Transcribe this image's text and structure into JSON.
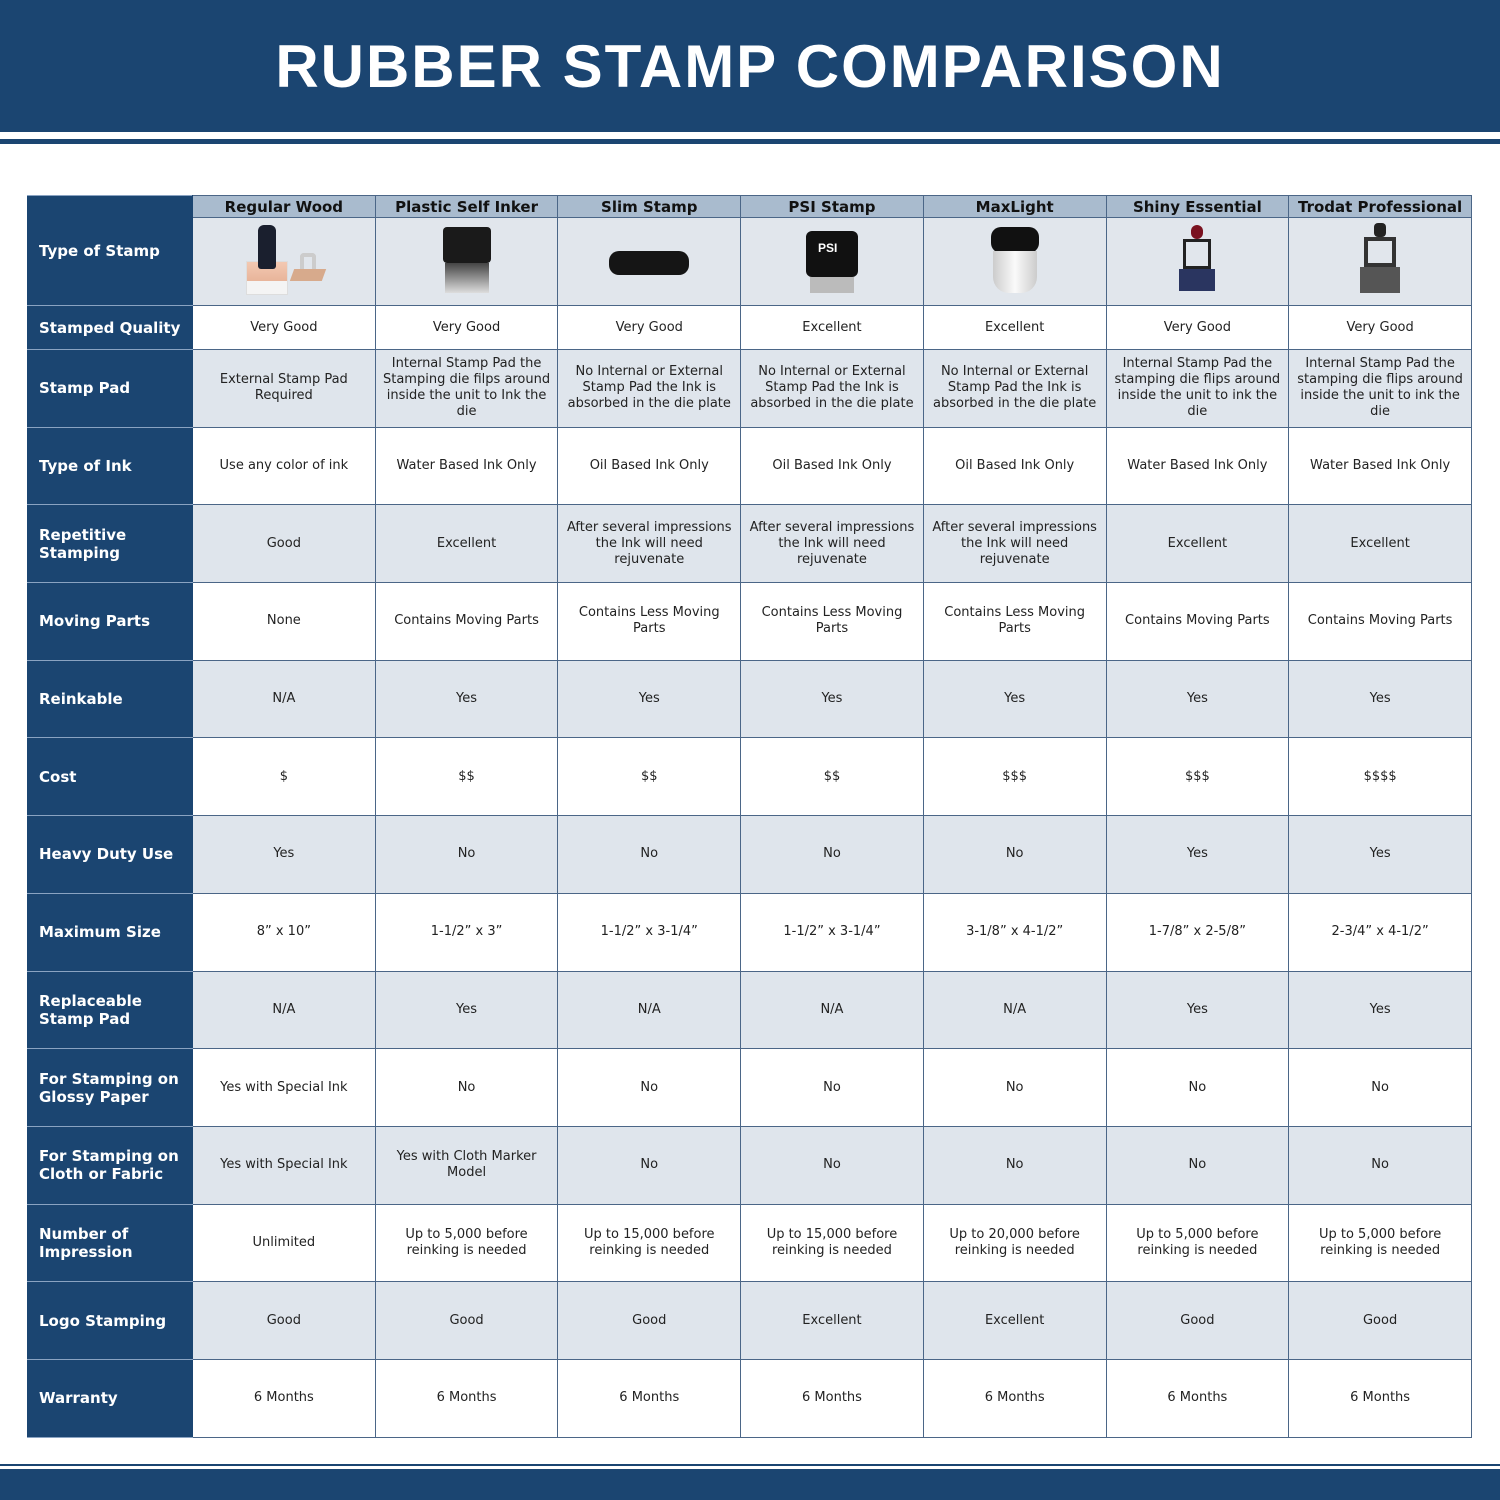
{
  "title": "RUBBER STAMP COMPARISON",
  "columns": [
    "Regular Wood",
    "Plastic Self Inker",
    "Slim Stamp",
    "PSI Stamp",
    "MaxLight",
    "Shiny Essential",
    "Trodat Professional"
  ],
  "image_row_label": "Type of Stamp",
  "rows": [
    {
      "label": "Stamped Quality",
      "values": [
        "Very Good",
        "Very Good",
        "Very Good",
        "Excellent",
        "Excellent",
        "Very Good",
        "Very Good"
      ]
    },
    {
      "label": "Stamp Pad",
      "values": [
        "External Stamp Pad Required",
        "Internal Stamp Pad the Stamping die filps around inside the unit to Ink the die",
        "No Internal or External Stamp Pad the Ink is absorbed in the die plate",
        "No Internal or External Stamp Pad the Ink is absorbed in the die plate",
        "No Internal or External Stamp Pad the Ink is absorbed in the die plate",
        "Internal Stamp Pad the stamping die flips around inside the unit to ink the die",
        "Internal Stamp Pad the stamping die flips around inside the unit to ink the die"
      ]
    },
    {
      "label": "Type of Ink",
      "values": [
        "Use any color of ink",
        "Water Based Ink Only",
        "Oil Based Ink Only",
        "Oil Based Ink Only",
        "Oil Based Ink Only",
        "Water Based Ink Only",
        "Water Based Ink Only"
      ]
    },
    {
      "label": "Repetitive Stamping",
      "values": [
        "Good",
        "Excellent",
        "After several impressions the Ink will need rejuvenate",
        "After several impressions the Ink will need rejuvenate",
        "After several impressions the Ink will need rejuvenate",
        "Excellent",
        "Excellent"
      ]
    },
    {
      "label": "Moving Parts",
      "values": [
        "None",
        "Contains Moving Parts",
        "Contains Less Moving Parts",
        "Contains Less Moving Parts",
        "Contains Less Moving Parts",
        "Contains Moving Parts",
        "Contains Moving Parts"
      ]
    },
    {
      "label": "Reinkable",
      "values": [
        "N/A",
        "Yes",
        "Yes",
        "Yes",
        "Yes",
        "Yes",
        "Yes"
      ]
    },
    {
      "label": "Cost",
      "values": [
        "$",
        "$$",
        "$$",
        "$$",
        "$$$",
        "$$$",
        "$$$$"
      ]
    },
    {
      "label": "Heavy Duty Use",
      "values": [
        "Yes",
        "No",
        "No",
        "No",
        "No",
        "Yes",
        "Yes"
      ]
    },
    {
      "label": "Maximum Size",
      "values": [
        "8” x 10”",
        "1-1/2” x 3”",
        "1-1/2” x 3-1/4”",
        "1-1/2” x 3-1/4”",
        "3-1/8” x 4-1/2”",
        "1-7/8” x 2-5/8”",
        "2-3/4” x 4-1/2”"
      ]
    },
    {
      "label": "Replaceable Stamp Pad",
      "values": [
        "N/A",
        "Yes",
        "N/A",
        "N/A",
        "N/A",
        "Yes",
        "Yes"
      ]
    },
    {
      "label": "For Stamping on Glossy Paper",
      "values": [
        "Yes with Special Ink",
        "No",
        "No",
        "No",
        "No",
        "No",
        "No"
      ]
    },
    {
      "label": "For Stamping on Cloth or Fabric",
      "values": [
        "Yes with Special Ink",
        "Yes with Cloth Marker Model",
        "No",
        "No",
        "No",
        "No",
        "No"
      ]
    },
    {
      "label": "Number of Impression",
      "values": [
        "Unlimited",
        "Up to 5,000 before reinking is needed",
        "Up to 15,000 before reinking is needed",
        "Up to 15,000 before reinking is needed",
        "Up to 20,000 before reinking is needed",
        "Up to 5,000 before reinking is needed",
        "Up to 5,000 before reinking is needed"
      ]
    },
    {
      "label": "Logo Stamping",
      "values": [
        "Good",
        "Good",
        "Good",
        "Excellent",
        "Excellent",
        "Good",
        "Good"
      ]
    },
    {
      "label": "Warranty",
      "values": [
        "6 Months",
        "6 Months",
        "6 Months",
        "6 Months",
        "6 Months",
        "6 Months",
        "6 Months"
      ]
    }
  ],
  "colors": {
    "brand": "#1b4571",
    "header_cell": "#a9bbce",
    "alt_row": "#dfe5ec"
  }
}
